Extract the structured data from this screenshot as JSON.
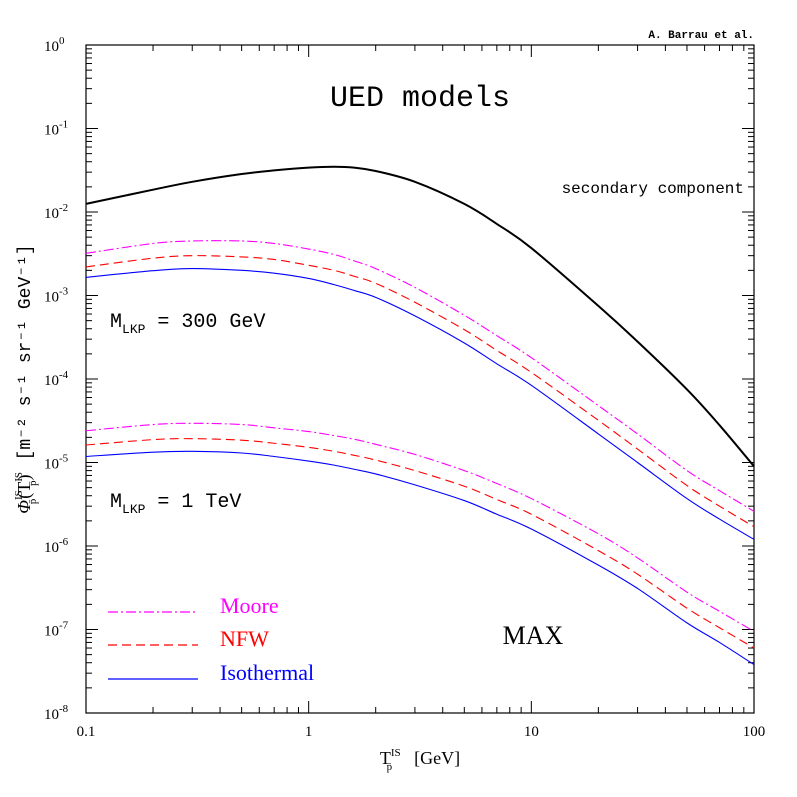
{
  "chart_data": {
    "type": "line",
    "credit": "A. Barrau et al.",
    "title": "UED models",
    "corner_label": "MAX",
    "xlabel": {
      "main": "T",
      "sup": "IS",
      "sub": "p̄",
      "unit": "[GeV]"
    },
    "ylabel": {
      "symbol": "Φ",
      "sup": "IS",
      "sub": "p̄",
      "arg_open": "(T",
      "arg_close": ")",
      "units": "[m⁻² s⁻¹ sr⁻¹ GeV⁻¹]"
    },
    "x_scale": "log",
    "y_scale": "log",
    "xlim": [
      0.1,
      100
    ],
    "ylim": [
      1e-08,
      1
    ],
    "x_ticks": [
      {
        "value": 0.1,
        "label": "0.1"
      },
      {
        "value": 1,
        "label": "1"
      },
      {
        "value": 10,
        "label": "10"
      },
      {
        "value": 100,
        "label": "100"
      }
    ],
    "y_ticks": [
      {
        "value": 1,
        "base": "10",
        "exp": "0"
      },
      {
        "value": 0.1,
        "base": "10",
        "exp": "-1"
      },
      {
        "value": 0.01,
        "base": "10",
        "exp": "-2"
      },
      {
        "value": 0.001,
        "base": "10",
        "exp": "-3"
      },
      {
        "value": 0.0001,
        "base": "10",
        "exp": "-4"
      },
      {
        "value": 1e-05,
        "base": "10",
        "exp": "-5"
      },
      {
        "value": 1e-06,
        "base": "10",
        "exp": "-6"
      },
      {
        "value": 1e-07,
        "base": "10",
        "exp": "-7"
      },
      {
        "value": 1e-08,
        "base": "10",
        "exp": "-8"
      }
    ],
    "grid": false,
    "mass_labels": [
      {
        "text": "M",
        "sub": "LKP",
        "value": "= 300 GeV"
      },
      {
        "text": "M",
        "sub": "LKP",
        "value": "= 1 TeV"
      }
    ],
    "series_label": "secondary component",
    "x": [
      0.1,
      0.2,
      0.3,
      0.5,
      0.7,
      1,
      1.3,
      1.6,
      2,
      3,
      5,
      7,
      10,
      20,
      30,
      50,
      70,
      100
    ],
    "series": [
      {
        "name": "secondary component",
        "color": "#000000",
        "style": "solid",
        "values": [
          0.0125,
          0.0185,
          0.023,
          0.0285,
          0.0315,
          0.034,
          0.0348,
          0.034,
          0.031,
          0.023,
          0.0125,
          0.0072,
          0.0037,
          0.00075,
          0.00028,
          7.5e-05,
          2.8e-05,
          9e-06
        ]
      },
      {
        "name": "Moore",
        "mass": "300 GeV",
        "color": "#ff00ff",
        "style": "dashdot",
        "values": [
          0.0032,
          0.0042,
          0.0045,
          0.0045,
          0.0042,
          0.0036,
          0.0031,
          0.0026,
          0.0021,
          0.00125,
          0.00058,
          0.00033,
          0.00018,
          4.8e-05,
          2.2e-05,
          8e-06,
          4.6e-06,
          2.6e-06
        ]
      },
      {
        "name": "NFW",
        "mass": "300 GeV",
        "color": "#ff0000",
        "style": "dashed",
        "values": [
          0.0022,
          0.0028,
          0.003,
          0.0029,
          0.0027,
          0.0023,
          0.002,
          0.0017,
          0.0014,
          0.00083,
          0.00039,
          0.00022,
          0.00012,
          3.2e-05,
          1.45e-05,
          5.3e-06,
          3e-06,
          1.7e-06
        ]
      },
      {
        "name": "Isothermal",
        "mass": "300 GeV",
        "color": "#0000ff",
        "style": "solid",
        "values": [
          0.00165,
          0.00198,
          0.0021,
          0.002,
          0.00185,
          0.0016,
          0.00135,
          0.00115,
          0.00095,
          0.00057,
          0.00027,
          0.000152,
          8.4e-05,
          2.2e-05,
          1e-05,
          3.7e-06,
          2.1e-06,
          1.2e-06
        ]
      },
      {
        "name": "Moore",
        "mass": "1 TeV",
        "color": "#ff00ff",
        "style": "dashdot",
        "values": [
          2.4e-05,
          2.85e-05,
          2.95e-05,
          2.85e-05,
          2.6e-05,
          2.35e-05,
          2.1e-05,
          1.9e-05,
          1.65e-05,
          1.25e-05,
          8e-06,
          5.6e-06,
          3.7e-06,
          1.4e-06,
          7.2e-07,
          2.8e-07,
          1.65e-07,
          9.5e-08
        ]
      },
      {
        "name": "NFW",
        "mass": "1 TeV",
        "color": "#ff0000",
        "style": "dashed",
        "values": [
          1.62e-05,
          1.88e-05,
          1.93e-05,
          1.85e-05,
          1.7e-05,
          1.52e-05,
          1.36e-05,
          1.22e-05,
          1.07e-05,
          8e-06,
          5.2e-06,
          3.6e-06,
          2.4e-06,
          8.8e-07,
          4.6e-07,
          1.8e-07,
          1.05e-07,
          6e-08
        ]
      },
      {
        "name": "Isothermal",
        "mass": "1 TeV",
        "color": "#0000ff",
        "style": "solid",
        "values": [
          1.18e-05,
          1.33e-05,
          1.36e-05,
          1.3e-05,
          1.18e-05,
          1.04e-05,
          9.3e-06,
          8.3e-06,
          7.3e-06,
          5.4e-06,
          3.5e-06,
          2.4e-06,
          1.6e-06,
          5.9e-07,
          3.1e-07,
          1.2e-07,
          7e-08,
          3.8e-08
        ]
      }
    ],
    "legend": {
      "position": "bottom-left",
      "entries": [
        {
          "label": "Moore",
          "color": "#ff00ff",
          "style": "dashdot"
        },
        {
          "label": "NFW",
          "color": "#ff0000",
          "style": "dashed"
        },
        {
          "label": "Isothermal",
          "color": "#0000ff",
          "style": "solid"
        }
      ]
    }
  }
}
